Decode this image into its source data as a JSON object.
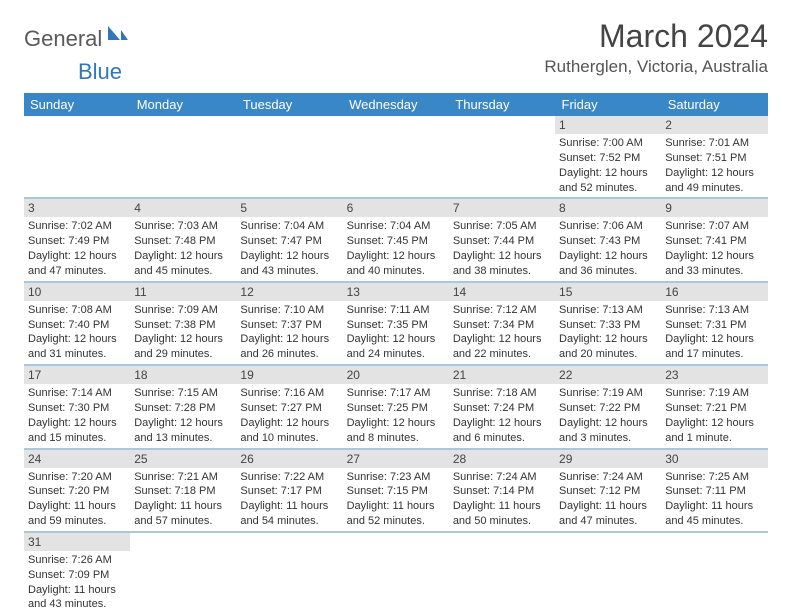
{
  "brand": {
    "part1": "General",
    "part2": "Blue"
  },
  "title": "March 2024",
  "location": "Rutherglen, Victoria, Australia",
  "colors": {
    "header_bg": "#3a87c7",
    "header_text": "#ffffff",
    "daynum_bg": "#e3e3e3",
    "row_divider": "#a9c7df",
    "logo_gray": "#5a5a5a",
    "logo_blue": "#2f78bd",
    "body_text": "#333333",
    "background": "#ffffff"
  },
  "typography": {
    "title_fontsize": 32,
    "location_fontsize": 17,
    "weekday_fontsize": 13,
    "daynum_fontsize": 12,
    "cell_fontsize": 11
  },
  "weekdays": [
    "Sunday",
    "Monday",
    "Tuesday",
    "Wednesday",
    "Thursday",
    "Friday",
    "Saturday"
  ],
  "weeks": [
    [
      null,
      null,
      null,
      null,
      null,
      {
        "n": "1",
        "sr": "Sunrise: 7:00 AM",
        "ss": "Sunset: 7:52 PM",
        "d1": "Daylight: 12 hours",
        "d2": "and 52 minutes."
      },
      {
        "n": "2",
        "sr": "Sunrise: 7:01 AM",
        "ss": "Sunset: 7:51 PM",
        "d1": "Daylight: 12 hours",
        "d2": "and 49 minutes."
      }
    ],
    [
      {
        "n": "3",
        "sr": "Sunrise: 7:02 AM",
        "ss": "Sunset: 7:49 PM",
        "d1": "Daylight: 12 hours",
        "d2": "and 47 minutes."
      },
      {
        "n": "4",
        "sr": "Sunrise: 7:03 AM",
        "ss": "Sunset: 7:48 PM",
        "d1": "Daylight: 12 hours",
        "d2": "and 45 minutes."
      },
      {
        "n": "5",
        "sr": "Sunrise: 7:04 AM",
        "ss": "Sunset: 7:47 PM",
        "d1": "Daylight: 12 hours",
        "d2": "and 43 minutes."
      },
      {
        "n": "6",
        "sr": "Sunrise: 7:04 AM",
        "ss": "Sunset: 7:45 PM",
        "d1": "Daylight: 12 hours",
        "d2": "and 40 minutes."
      },
      {
        "n": "7",
        "sr": "Sunrise: 7:05 AM",
        "ss": "Sunset: 7:44 PM",
        "d1": "Daylight: 12 hours",
        "d2": "and 38 minutes."
      },
      {
        "n": "8",
        "sr": "Sunrise: 7:06 AM",
        "ss": "Sunset: 7:43 PM",
        "d1": "Daylight: 12 hours",
        "d2": "and 36 minutes."
      },
      {
        "n": "9",
        "sr": "Sunrise: 7:07 AM",
        "ss": "Sunset: 7:41 PM",
        "d1": "Daylight: 12 hours",
        "d2": "and 33 minutes."
      }
    ],
    [
      {
        "n": "10",
        "sr": "Sunrise: 7:08 AM",
        "ss": "Sunset: 7:40 PM",
        "d1": "Daylight: 12 hours",
        "d2": "and 31 minutes."
      },
      {
        "n": "11",
        "sr": "Sunrise: 7:09 AM",
        "ss": "Sunset: 7:38 PM",
        "d1": "Daylight: 12 hours",
        "d2": "and 29 minutes."
      },
      {
        "n": "12",
        "sr": "Sunrise: 7:10 AM",
        "ss": "Sunset: 7:37 PM",
        "d1": "Daylight: 12 hours",
        "d2": "and 26 minutes."
      },
      {
        "n": "13",
        "sr": "Sunrise: 7:11 AM",
        "ss": "Sunset: 7:35 PM",
        "d1": "Daylight: 12 hours",
        "d2": "and 24 minutes."
      },
      {
        "n": "14",
        "sr": "Sunrise: 7:12 AM",
        "ss": "Sunset: 7:34 PM",
        "d1": "Daylight: 12 hours",
        "d2": "and 22 minutes."
      },
      {
        "n": "15",
        "sr": "Sunrise: 7:13 AM",
        "ss": "Sunset: 7:33 PM",
        "d1": "Daylight: 12 hours",
        "d2": "and 20 minutes."
      },
      {
        "n": "16",
        "sr": "Sunrise: 7:13 AM",
        "ss": "Sunset: 7:31 PM",
        "d1": "Daylight: 12 hours",
        "d2": "and 17 minutes."
      }
    ],
    [
      {
        "n": "17",
        "sr": "Sunrise: 7:14 AM",
        "ss": "Sunset: 7:30 PM",
        "d1": "Daylight: 12 hours",
        "d2": "and 15 minutes."
      },
      {
        "n": "18",
        "sr": "Sunrise: 7:15 AM",
        "ss": "Sunset: 7:28 PM",
        "d1": "Daylight: 12 hours",
        "d2": "and 13 minutes."
      },
      {
        "n": "19",
        "sr": "Sunrise: 7:16 AM",
        "ss": "Sunset: 7:27 PM",
        "d1": "Daylight: 12 hours",
        "d2": "and 10 minutes."
      },
      {
        "n": "20",
        "sr": "Sunrise: 7:17 AM",
        "ss": "Sunset: 7:25 PM",
        "d1": "Daylight: 12 hours",
        "d2": "and 8 minutes."
      },
      {
        "n": "21",
        "sr": "Sunrise: 7:18 AM",
        "ss": "Sunset: 7:24 PM",
        "d1": "Daylight: 12 hours",
        "d2": "and 6 minutes."
      },
      {
        "n": "22",
        "sr": "Sunrise: 7:19 AM",
        "ss": "Sunset: 7:22 PM",
        "d1": "Daylight: 12 hours",
        "d2": "and 3 minutes."
      },
      {
        "n": "23",
        "sr": "Sunrise: 7:19 AM",
        "ss": "Sunset: 7:21 PM",
        "d1": "Daylight: 12 hours",
        "d2": "and 1 minute."
      }
    ],
    [
      {
        "n": "24",
        "sr": "Sunrise: 7:20 AM",
        "ss": "Sunset: 7:20 PM",
        "d1": "Daylight: 11 hours",
        "d2": "and 59 minutes."
      },
      {
        "n": "25",
        "sr": "Sunrise: 7:21 AM",
        "ss": "Sunset: 7:18 PM",
        "d1": "Daylight: 11 hours",
        "d2": "and 57 minutes."
      },
      {
        "n": "26",
        "sr": "Sunrise: 7:22 AM",
        "ss": "Sunset: 7:17 PM",
        "d1": "Daylight: 11 hours",
        "d2": "and 54 minutes."
      },
      {
        "n": "27",
        "sr": "Sunrise: 7:23 AM",
        "ss": "Sunset: 7:15 PM",
        "d1": "Daylight: 11 hours",
        "d2": "and 52 minutes."
      },
      {
        "n": "28",
        "sr": "Sunrise: 7:24 AM",
        "ss": "Sunset: 7:14 PM",
        "d1": "Daylight: 11 hours",
        "d2": "and 50 minutes."
      },
      {
        "n": "29",
        "sr": "Sunrise: 7:24 AM",
        "ss": "Sunset: 7:12 PM",
        "d1": "Daylight: 11 hours",
        "d2": "and 47 minutes."
      },
      {
        "n": "30",
        "sr": "Sunrise: 7:25 AM",
        "ss": "Sunset: 7:11 PM",
        "d1": "Daylight: 11 hours",
        "d2": "and 45 minutes."
      }
    ],
    [
      {
        "n": "31",
        "sr": "Sunrise: 7:26 AM",
        "ss": "Sunset: 7:09 PM",
        "d1": "Daylight: 11 hours",
        "d2": "and 43 minutes."
      },
      null,
      null,
      null,
      null,
      null,
      null
    ]
  ]
}
